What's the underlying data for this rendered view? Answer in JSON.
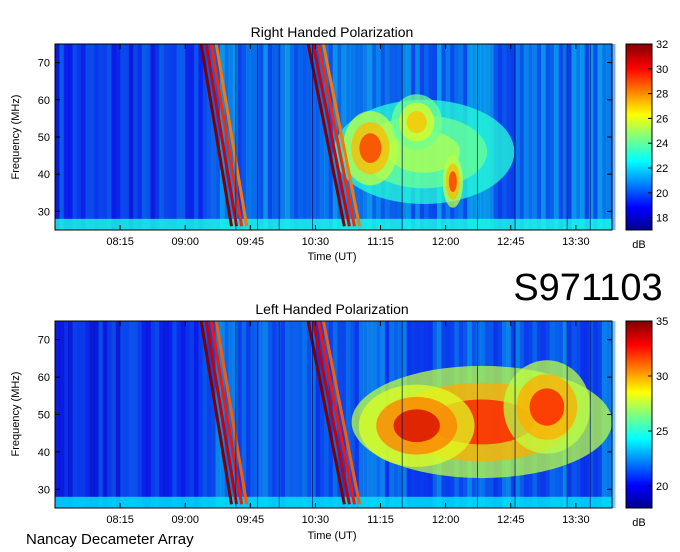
{
  "figure": {
    "event_id": "S971103",
    "instrument": "Nancay Decameter Array"
  },
  "chart_data": [
    {
      "type": "heatmap",
      "title": "Right Handed Polarization",
      "xlabel": "Time (UT)",
      "ylabel": "Frequency (MHz)",
      "x_ticks": [
        "08:15",
        "09:00",
        "09:45",
        "10:30",
        "11:15",
        "12:00",
        "12:45",
        "13:30"
      ],
      "x_tick_minutes": [
        495,
        540,
        585,
        630,
        675,
        720,
        765,
        810
      ],
      "xlim_minutes": [
        450,
        835
      ],
      "y_ticks": [
        30,
        40,
        50,
        60,
        70
      ],
      "ylim": [
        25,
        75
      ],
      "colorbar": {
        "label": "dB",
        "range": [
          17,
          32
        ],
        "ticks": [
          18,
          20,
          22,
          24,
          26,
          28,
          30,
          32
        ]
      },
      "bursts": [
        {
          "t_start": 551,
          "t_end": 572,
          "f_high": 75,
          "f_low": 26,
          "level": 32
        },
        {
          "t_start": 625,
          "t_end": 650,
          "f_high": 75,
          "f_low": 26,
          "level": 32
        }
      ],
      "blobs": [
        {
          "t": 668,
          "f": 47,
          "dt": 38,
          "df": 20,
          "level": 29
        },
        {
          "t": 700,
          "f": 54,
          "dt": 35,
          "df": 15,
          "level": 27
        },
        {
          "t": 725,
          "f": 38,
          "dt": 14,
          "df": 14,
          "level": 29
        },
        {
          "t": 705,
          "f": 46,
          "dt": 125,
          "df": 28,
          "level": 25
        }
      ],
      "background_level": 21
    },
    {
      "type": "heatmap",
      "title": "Left Handed Polarization",
      "xlabel": "Time (UT)",
      "ylabel": "Frequency (MHz)",
      "x_ticks": [
        "08:15",
        "09:00",
        "09:45",
        "10:30",
        "11:15",
        "12:00",
        "12:45",
        "13:30"
      ],
      "x_tick_minutes": [
        495,
        540,
        585,
        630,
        675,
        720,
        765,
        810
      ],
      "xlim_minutes": [
        450,
        835
      ],
      "y_ticks": [
        30,
        40,
        50,
        60,
        70
      ],
      "ylim": [
        25,
        75
      ],
      "colorbar": {
        "label": "dB",
        "range": [
          18,
          35
        ],
        "ticks": [
          20,
          25,
          30,
          35
        ]
      },
      "bursts": [
        {
          "t_start": 551,
          "t_end": 572,
          "f_high": 75,
          "f_low": 26,
          "level": 35
        },
        {
          "t_start": 625,
          "t_end": 650,
          "f_high": 75,
          "f_low": 26,
          "level": 35
        }
      ],
      "blobs": [
        {
          "t": 745,
          "f": 48,
          "dt": 180,
          "df": 30,
          "level": 32
        },
        {
          "t": 700,
          "f": 47,
          "dt": 80,
          "df": 22,
          "level": 33
        },
        {
          "t": 790,
          "f": 52,
          "dt": 60,
          "df": 25,
          "level": 32
        }
      ],
      "background_level": 22
    }
  ]
}
